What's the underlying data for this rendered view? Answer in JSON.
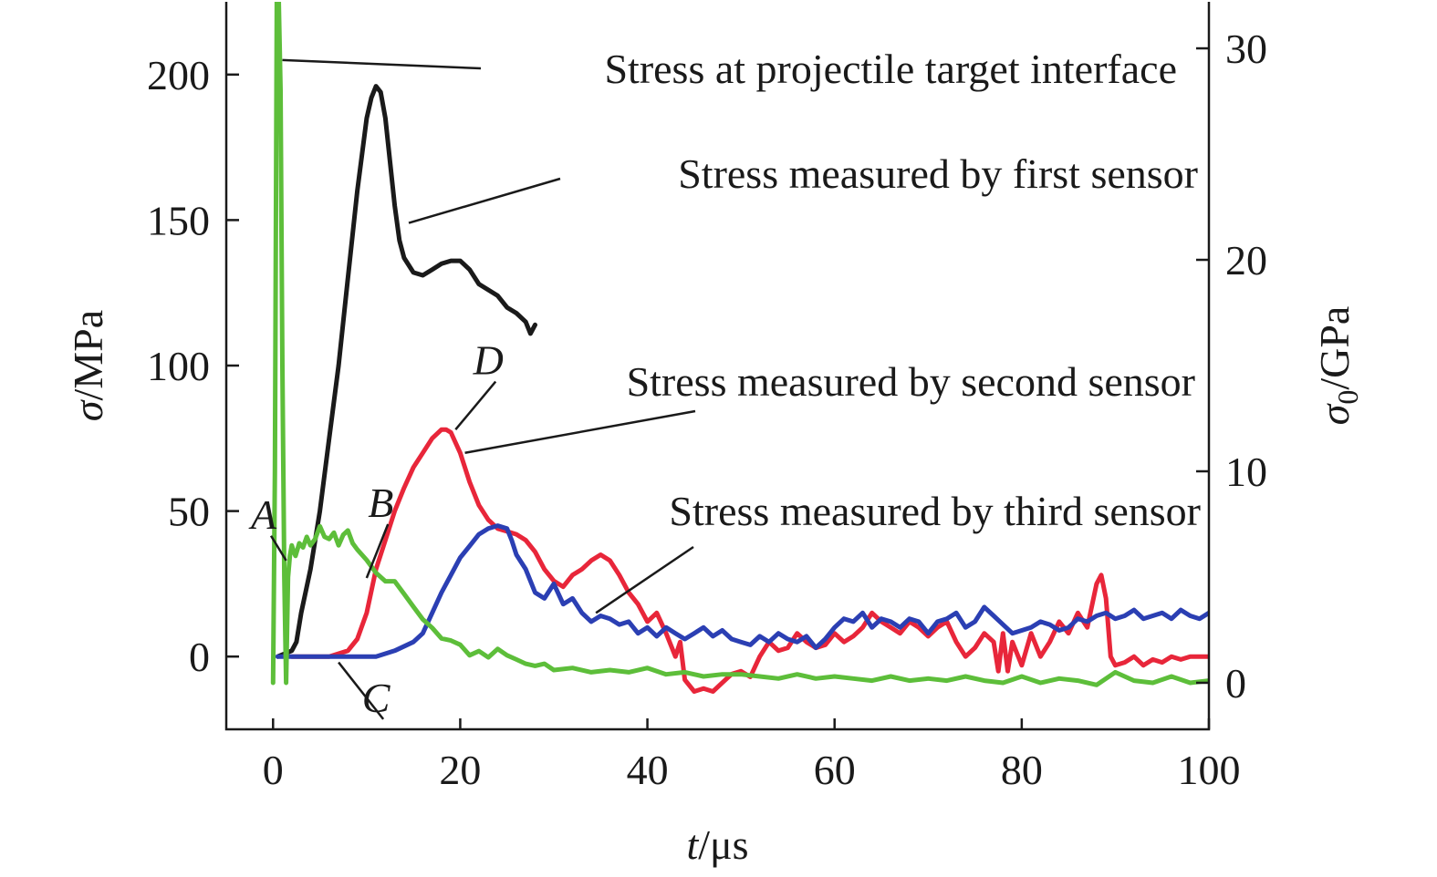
{
  "chart_data": {
    "type": "line",
    "xlabel": {
      "var": "t",
      "unit": "/μs"
    },
    "ylabel": {
      "var": "σ",
      "unit": "/MPa"
    },
    "y2label": {
      "var": "σ",
      "sub": "0",
      "unit": "/GPa"
    },
    "xlim": [
      -5,
      100
    ],
    "ylim": [
      -25,
      225
    ],
    "y2lim": [
      -2.2,
      32.2
    ],
    "x_ticks": [
      0,
      20,
      40,
      60,
      80,
      100
    ],
    "y_ticks": [
      0,
      50,
      100,
      150,
      200
    ],
    "y2_ticks": [
      0,
      10,
      20,
      30
    ],
    "grid": false,
    "series": [
      {
        "color": "#1a1a1a",
        "axis": "left",
        "x": [
          0.5,
          2,
          2.5,
          3,
          4,
          5,
          6,
          7,
          8,
          9,
          10,
          10.5,
          11,
          11.5,
          12,
          12.5,
          13,
          13.5,
          14,
          15,
          16,
          17,
          18,
          19,
          20,
          21,
          22,
          23,
          24,
          25,
          26,
          27,
          27.5,
          28
        ],
        "y": [
          0,
          2,
          5,
          15,
          30,
          50,
          75,
          100,
          130,
          160,
          185,
          192,
          196,
          194,
          185,
          170,
          155,
          143,
          137,
          132,
          131,
          133,
          135,
          136,
          136,
          133,
          128,
          126,
          124,
          120,
          118,
          115,
          111,
          114
        ]
      },
      {
        "color": "#e8263a",
        "axis": "left",
        "x": [
          2,
          6,
          8,
          9,
          10,
          11,
          12,
          13,
          14,
          15,
          16,
          17,
          18,
          18.5,
          19,
          20,
          21,
          22,
          23,
          24,
          25,
          26,
          27,
          28,
          29,
          30,
          31,
          32,
          33,
          34,
          35,
          36,
          37,
          38,
          39,
          40,
          41,
          42,
          43,
          43.5,
          44,
          45,
          46,
          47,
          48,
          49,
          50,
          51,
          52,
          53,
          54,
          55,
          56,
          57,
          58,
          59,
          60,
          61,
          62,
          63,
          64,
          65,
          66,
          67,
          68,
          69,
          70,
          71,
          72,
          73,
          74,
          75,
          76,
          77,
          77.5,
          78,
          78.5,
          79,
          80,
          81,
          82,
          83,
          84,
          85,
          86,
          87,
          88,
          88.5,
          89,
          89.5,
          90,
          91,
          92,
          93,
          94,
          95,
          96,
          97,
          98,
          99,
          100
        ],
        "y": [
          0,
          0,
          2,
          6,
          15,
          30,
          40,
          50,
          58,
          65,
          70,
          75,
          78,
          78,
          77,
          70,
          60,
          52,
          47,
          44,
          43,
          42,
          40,
          36,
          30,
          26,
          24,
          28,
          30,
          33,
          35,
          33,
          28,
          22,
          18,
          12,
          15,
          8,
          0,
          5,
          -8,
          -12,
          -11,
          -12,
          -9,
          -6,
          -5,
          -7,
          0,
          5,
          2,
          3,
          8,
          5,
          3,
          4,
          8,
          5,
          7,
          10,
          15,
          12,
          10,
          8,
          12,
          10,
          7,
          10,
          12,
          5,
          0,
          3,
          8,
          5,
          -5,
          8,
          -5,
          5,
          -3,
          8,
          0,
          5,
          12,
          8,
          15,
          10,
          25,
          28,
          20,
          0,
          -3,
          -2,
          0,
          -3,
          -1,
          -2,
          0,
          -1,
          0,
          0,
          0
        ]
      },
      {
        "color": "#2b3fb3",
        "axis": "left",
        "x": [
          0.5,
          3,
          6,
          9,
          11,
          13,
          15,
          16,
          17,
          18,
          19,
          20,
          21,
          22,
          23,
          24,
          25,
          25.5,
          26,
          27,
          28,
          29,
          30,
          31,
          32,
          33,
          34,
          35,
          36,
          37,
          38,
          39,
          40,
          41,
          42,
          43,
          44,
          45,
          46,
          47,
          48,
          49,
          50,
          51,
          52,
          53,
          54,
          55,
          56,
          57,
          58,
          59,
          60,
          61,
          62,
          63,
          64,
          65,
          66,
          67,
          68,
          69,
          70,
          71,
          72,
          73,
          74,
          75,
          76,
          77,
          78,
          79,
          80,
          81,
          82,
          83,
          84,
          85,
          86,
          87,
          88,
          89,
          90,
          91,
          92,
          93,
          94,
          95,
          96,
          97,
          98,
          99,
          100
        ],
        "y": [
          0,
          0,
          0,
          0,
          0,
          2,
          5,
          8,
          15,
          22,
          28,
          34,
          38,
          42,
          44,
          45,
          44,
          40,
          35,
          30,
          22,
          20,
          25,
          18,
          20,
          15,
          12,
          14,
          13,
          11,
          12,
          8,
          10,
          7,
          10,
          8,
          6,
          8,
          10,
          7,
          9,
          6,
          5,
          4,
          7,
          5,
          8,
          6,
          5,
          7,
          3,
          6,
          10,
          13,
          12,
          15,
          10,
          13,
          12,
          10,
          13,
          12,
          8,
          12,
          13,
          15,
          10,
          12,
          17,
          14,
          11,
          8,
          9,
          10,
          12,
          11,
          9,
          10,
          13,
          12,
          14,
          15,
          13,
          14,
          16,
          13,
          14,
          15,
          13,
          16,
          14,
          13,
          15
        ]
      },
      {
        "color": "#5dbe3a",
        "axis": "right",
        "x": [
          0,
          0.2,
          0.4,
          0.6,
          0.8,
          1.0,
          1.2,
          1.4,
          1.6,
          1.8,
          2.0,
          2.2,
          2.4,
          2.8,
          3.2,
          3.6,
          4.0,
          4.5,
          5.0,
          5.5,
          6.0,
          6.5,
          7.0,
          7.5,
          8.0,
          8.5,
          9.0,
          10,
          11,
          12,
          13,
          14,
          15,
          16,
          17,
          18,
          19,
          20,
          21,
          22,
          23,
          24,
          25,
          26,
          27,
          28,
          29,
          30,
          32,
          34,
          36,
          38,
          40,
          42,
          44,
          46,
          48,
          50,
          52,
          54,
          56,
          58,
          60,
          62,
          64,
          66,
          68,
          70,
          72,
          74,
          76,
          78,
          80,
          82,
          84,
          86,
          88,
          90,
          92,
          94,
          96,
          98,
          100
        ],
        "y": [
          0,
          10,
          32.5,
          32.5,
          28,
          15,
          5,
          0,
          5,
          6,
          6.5,
          6.2,
          6,
          6.6,
          6.4,
          6.9,
          6.5,
          6.8,
          7.4,
          6.9,
          6.8,
          7.1,
          6.5,
          7.0,
          7.2,
          6.6,
          6.3,
          5.8,
          5.2,
          4.8,
          4.8,
          4.2,
          3.6,
          3.0,
          2.6,
          2.1,
          2.0,
          1.8,
          1.3,
          1.5,
          1.2,
          1.6,
          1.3,
          1.1,
          0.9,
          0.8,
          0.9,
          0.6,
          0.7,
          0.5,
          0.6,
          0.5,
          0.7,
          0.4,
          0.5,
          0.3,
          0.4,
          0.4,
          0.3,
          0.2,
          0.4,
          0.2,
          0.3,
          0.2,
          0.1,
          0.3,
          0.1,
          0.2,
          0.1,
          0.3,
          0.1,
          0.0,
          0.3,
          0.0,
          0.2,
          0.1,
          -0.1,
          0.5,
          0.1,
          0.0,
          0.3,
          0.0,
          0.1
        ]
      }
    ],
    "annotations": [
      {
        "text": "Stress at projectile target interface",
        "point": [
          1,
          205
        ],
        "label_at": [
          73,
          203
        ]
      },
      {
        "text": "Stress measured by first sensor",
        "point": [
          14.5,
          149
        ],
        "label_at": [
          73,
          168
        ]
      },
      {
        "text": "Stress measured by second sensor",
        "point": [
          20.5,
          70
        ],
        "label_at": [
          73,
          93
        ]
      },
      {
        "text": "Stress measured by third sensor",
        "point": [
          34.5,
          15
        ],
        "label_at": [
          73,
          40
        ]
      }
    ],
    "point_labels": [
      {
        "text": "A",
        "x": -1,
        "y": 44,
        "target": [
          1.4,
          33
        ]
      },
      {
        "text": "B",
        "x": 11.5,
        "y": 48,
        "target": [
          10,
          27
        ]
      },
      {
        "text": "C",
        "x": 11,
        "y": -19,
        "target": [
          7,
          -2
        ]
      },
      {
        "text": "D",
        "x": 23,
        "y": 97,
        "target": [
          19.5,
          78
        ]
      }
    ]
  }
}
